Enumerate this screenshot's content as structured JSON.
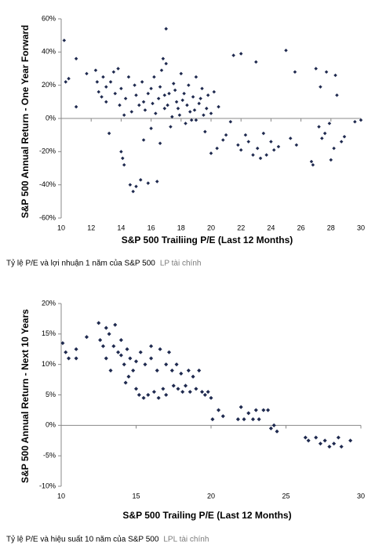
{
  "chart_data": [
    {
      "type": "scatter",
      "x_label": "S&P 500 Trailiing P/E (Last 12 Months)",
      "y_label": "S&P 500 Annual Return - One Year Forward",
      "caption": "Tỷ lệ P/E và lợi nhuận 1 năm của S&P 500",
      "source": "LP tài chính",
      "color": "#1f2a4f",
      "xlim": [
        10,
        30
      ],
      "xticks": [
        10,
        12,
        14,
        16,
        18,
        20,
        22,
        24,
        26,
        28,
        30
      ],
      "ylim": [
        -60,
        60
      ],
      "yticks": [
        {
          "value": -60,
          "label": "-60%"
        },
        {
          "value": -40,
          "label": "-40%"
        },
        {
          "value": -20,
          "label": "-20%"
        },
        {
          "value": 0,
          "label": "0%"
        },
        {
          "value": 20,
          "label": "20%"
        },
        {
          "value": 40,
          "label": "40%"
        },
        {
          "value": 60,
          "label": "60%"
        }
      ],
      "x": [
        10.2,
        10.3,
        10.5,
        11,
        11,
        11.7,
        12.3,
        12.4,
        12.5,
        12.7,
        12.8,
        13,
        13,
        13.2,
        13.3,
        13.5,
        13.6,
        13.8,
        13.9,
        14,
        14,
        14.1,
        14.2,
        14.2,
        14.3,
        14.5,
        14.6,
        14.7,
        14.8,
        14.9,
        15,
        15,
        15.2,
        15.3,
        15.4,
        15.5,
        15.6,
        15.8,
        16,
        16,
        16.2,
        16.4,
        16.5,
        16.6,
        16.7,
        16.8,
        16.9,
        17,
        17,
        17.2,
        17.3,
        17.5,
        17.7,
        17.9,
        18,
        18.2,
        18.3,
        18.5,
        18.6,
        18.8,
        19,
        19,
        19.2,
        19.4,
        19.5,
        19.6,
        19.8,
        20,
        20,
        20.2,
        20.4,
        20.5,
        20.8,
        21,
        21.3,
        21.5,
        21.8,
        22,
        22,
        22.3,
        22.5,
        22.8,
        23,
        23.1,
        23.3,
        23.5,
        23.7,
        24,
        24.2,
        24.5,
        25,
        25.3,
        25.6,
        25.7,
        26.7,
        26.8,
        27,
        27.2,
        27.3,
        27.4,
        27.6,
        27.7,
        27.9,
        28,
        28.2,
        28.3,
        28.4,
        28.7,
        28.9,
        29.6,
        30,
        15.5,
        15.8,
        16.1,
        16.3,
        16.9,
        17.1,
        17.4,
        17.8,
        18.1,
        18.4,
        18.9,
        19.3,
        19.7,
        16.6,
        17.6,
        18.7
      ],
      "values": [
        47,
        22,
        24,
        36,
        7,
        27,
        29,
        22,
        16,
        13,
        25,
        19,
        10,
        -9,
        22,
        28,
        15,
        30,
        8,
        18,
        -20,
        -24,
        2,
        -28,
        12,
        25,
        -40,
        4,
        -44,
        20,
        -41,
        14,
        8,
        -37,
        22,
        -13,
        5,
        -39,
        18,
        -6,
        25,
        -38,
        12,
        -15,
        29,
        36,
        6,
        54,
        33,
        15,
        -5,
        21,
        10,
        2,
        27,
        15,
        -3,
        20,
        4,
        13,
        25,
        -1,
        9,
        18,
        2,
        -8,
        14,
        3,
        -21,
        16,
        -18,
        7,
        -13,
        -10,
        -2,
        38,
        -16,
        39,
        -19,
        -10,
        -14,
        -22,
        34,
        -18,
        -24,
        -9,
        -22,
        -14,
        -19,
        -17,
        41,
        -12,
        28,
        -16,
        -26,
        -28,
        30,
        -5,
        19,
        -12,
        -9,
        28,
        -3,
        -25,
        -18,
        26,
        14,
        -14,
        -11,
        -2,
        -1,
        10,
        15,
        9,
        3,
        14,
        8,
        1,
        6,
        11,
        8,
        5,
        12,
        6,
        19,
        17,
        -1
      ]
    },
    {
      "type": "scatter",
      "x_label": "S&P 500 Trailing P/E (Last 12 Months)",
      "y_label": "S&P 500 Annual Return - Next 10 Years",
      "caption": "Tỷ lệ P/E và hiệu suất 10 năm của S&P 500",
      "source": "LPL tài chính",
      "color": "#1f2a4f",
      "xlim": [
        10,
        30
      ],
      "xticks": [
        10,
        15,
        20,
        25,
        30
      ],
      "ylim": [
        -10,
        20
      ],
      "yticks": [
        {
          "value": -10,
          "label": "-10%"
        },
        {
          "value": -5,
          "label": "-5%"
        },
        {
          "value": 0,
          "label": "0%"
        },
        {
          "value": 5,
          "label": "5%"
        },
        {
          "value": 10,
          "label": "10%"
        },
        {
          "value": 15,
          "label": "15%"
        },
        {
          "value": 20,
          "label": "20%"
        }
      ],
      "x": [
        10.1,
        10.3,
        10.5,
        11,
        11,
        11.7,
        12.5,
        12.6,
        12.8,
        13,
        13,
        13.2,
        13.3,
        13.5,
        13.6,
        13.8,
        14,
        14,
        14.2,
        14.3,
        14.4,
        14.5,
        14.6,
        14.8,
        15,
        15,
        15.2,
        15.3,
        15.5,
        15.6,
        15.8,
        16,
        16,
        16.2,
        16.4,
        16.5,
        16.6,
        16.8,
        17,
        17,
        17.2,
        17.4,
        17.5,
        17.7,
        17.8,
        18,
        18.1,
        18.3,
        18.5,
        18.6,
        18.8,
        19,
        19.2,
        19.4,
        19.6,
        19.8,
        20,
        20.1,
        20.5,
        20.8,
        21.8,
        22,
        22.2,
        22.5,
        22.8,
        23,
        23.2,
        23.5,
        23.8,
        24,
        24.2,
        24.4,
        26.3,
        26.5,
        27,
        27.3,
        27.6,
        27.9,
        28.2,
        28.5,
        28.7,
        29.3
      ],
      "values": [
        13.5,
        12,
        11,
        11,
        12.5,
        14.5,
        16.8,
        14,
        13,
        16,
        11,
        15,
        9,
        13,
        16.5,
        12,
        11.5,
        14,
        10,
        7,
        12.5,
        8,
        11,
        9,
        10.5,
        6,
        5,
        12,
        4.5,
        10,
        5,
        11,
        13,
        5.5,
        9,
        4.5,
        12.5,
        6,
        10,
        5,
        12,
        9,
        6.5,
        10,
        6,
        8.5,
        5.5,
        6.5,
        9,
        5.5,
        8,
        6,
        9,
        5.5,
        5,
        5.5,
        4.5,
        1,
        2.5,
        1.5,
        1,
        3,
        1,
        2,
        1,
        2.5,
        1,
        2.5,
        2.5,
        -0.5,
        0,
        -1,
        -2,
        -2.5,
        -2,
        -3,
        -2.5,
        -3.5,
        -3,
        -2,
        -3.5,
        -2.5
      ]
    }
  ]
}
